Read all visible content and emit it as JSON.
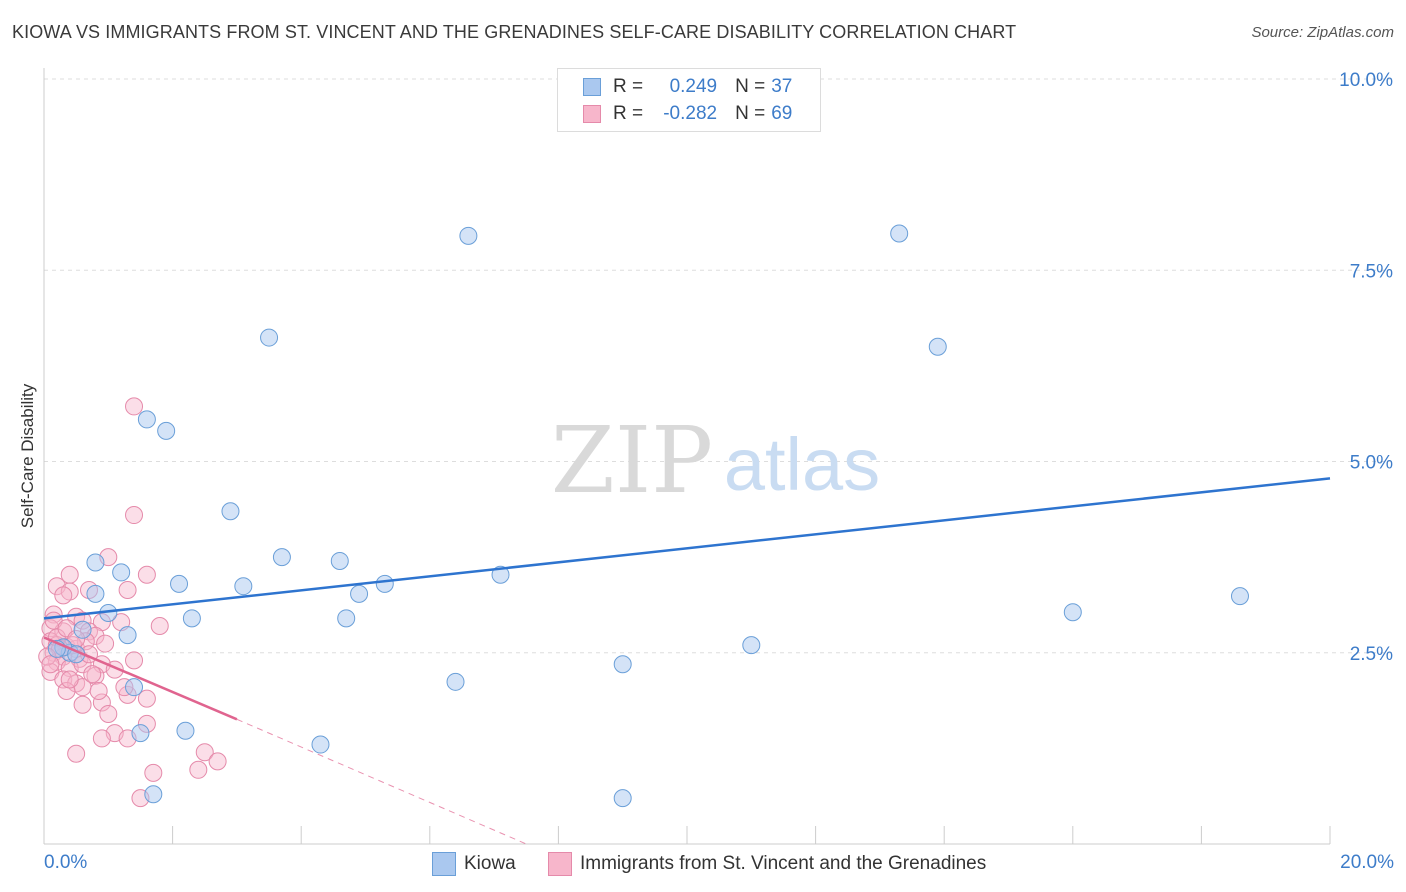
{
  "title": "KIOWA VS IMMIGRANTS FROM ST. VINCENT AND THE GRENADINES SELF-CARE DISABILITY CORRELATION CHART",
  "source": "Source: ZipAtlas.com",
  "watermark": {
    "zip": "ZIP",
    "atlas": "atlas"
  },
  "stats": {
    "kiowa": {
      "r_label": "R =",
      "r_value": "0.249",
      "n_label": "N =",
      "n_value": "37"
    },
    "svg": {
      "r_label": "R =",
      "r_value": "-0.282",
      "n_label": "N =",
      "n_value": "69"
    }
  },
  "colors": {
    "kiowa_fill": "#aac8ef",
    "kiowa_stroke": "#6a9fd8",
    "kiowa_line": "#2e74cf",
    "svg_fill": "#f7b6cb",
    "svg_stroke": "#e58aaa",
    "svg_line": "#e0648f",
    "axis_text": "#3d7cc9",
    "grid": "#dddddd"
  },
  "chart_data": {
    "type": "scatter",
    "title": "KIOWA VS IMMIGRANTS FROM ST. VINCENT AND THE GRENADINES SELF-CARE DISABILITY CORRELATION CHART",
    "xlabel": "",
    "ylabel": "Self-Care Disability",
    "xlim": [
      0,
      20
    ],
    "ylim": [
      0,
      10
    ],
    "x_tick_labels": [
      "0.0%",
      "20.0%"
    ],
    "y_ticks": [
      2.5,
      5.0,
      7.5,
      10.0
    ],
    "y_tick_labels": [
      "2.5%",
      "5.0%",
      "7.5%",
      "10.0%"
    ],
    "grid": true,
    "legend_position": "bottom-center",
    "series": [
      {
        "name": "Kiowa",
        "points": [
          [
            6.6,
            7.95
          ],
          [
            13.3,
            7.98
          ],
          [
            3.5,
            6.62
          ],
          [
            13.9,
            6.5
          ],
          [
            1.6,
            5.55
          ],
          [
            1.9,
            5.4
          ],
          [
            2.9,
            4.35
          ],
          [
            1.2,
            3.55
          ],
          [
            0.8,
            3.68
          ],
          [
            3.7,
            3.75
          ],
          [
            4.6,
            3.7
          ],
          [
            7.1,
            3.52
          ],
          [
            2.1,
            3.4
          ],
          [
            3.1,
            3.37
          ],
          [
            5.3,
            3.4
          ],
          [
            4.9,
            3.27
          ],
          [
            0.8,
            3.27
          ],
          [
            1.0,
            3.02
          ],
          [
            2.3,
            2.95
          ],
          [
            4.7,
            2.95
          ],
          [
            16.0,
            3.03
          ],
          [
            18.6,
            3.24
          ],
          [
            1.3,
            2.73
          ],
          [
            0.6,
            2.8
          ],
          [
            11.0,
            2.6
          ],
          [
            0.4,
            2.5
          ],
          [
            0.3,
            2.57
          ],
          [
            9.0,
            2.35
          ],
          [
            6.4,
            2.12
          ],
          [
            1.4,
            2.05
          ],
          [
            1.5,
            1.45
          ],
          [
            2.2,
            1.48
          ],
          [
            4.3,
            1.3
          ],
          [
            1.7,
            0.65
          ],
          [
            9.0,
            0.6
          ],
          [
            0.2,
            2.55
          ],
          [
            0.5,
            2.48
          ]
        ],
        "trend": {
          "x": [
            0,
            20
          ],
          "y": [
            2.95,
            4.78
          ]
        }
      },
      {
        "name": "Immigrants from St. Vincent and the Grenadines",
        "points": [
          [
            1.4,
            5.72
          ],
          [
            1.4,
            4.3
          ],
          [
            1.0,
            3.75
          ],
          [
            0.4,
            3.52
          ],
          [
            1.6,
            3.52
          ],
          [
            0.2,
            3.37
          ],
          [
            0.4,
            3.3
          ],
          [
            0.7,
            3.32
          ],
          [
            1.3,
            3.32
          ],
          [
            0.3,
            3.25
          ],
          [
            0.5,
            2.97
          ],
          [
            0.15,
            3.0
          ],
          [
            0.6,
            2.92
          ],
          [
            0.9,
            2.9
          ],
          [
            1.2,
            2.9
          ],
          [
            1.8,
            2.85
          ],
          [
            0.1,
            2.82
          ],
          [
            0.3,
            2.78
          ],
          [
            0.7,
            2.78
          ],
          [
            0.8,
            2.72
          ],
          [
            0.1,
            2.65
          ],
          [
            0.2,
            2.6
          ],
          [
            0.35,
            2.58
          ],
          [
            0.5,
            2.55
          ],
          [
            0.65,
            2.65
          ],
          [
            0.15,
            2.5
          ],
          [
            0.3,
            2.45
          ],
          [
            0.55,
            2.42
          ],
          [
            0.2,
            2.38
          ],
          [
            1.4,
            2.4
          ],
          [
            0.9,
            2.35
          ],
          [
            0.4,
            2.3
          ],
          [
            0.1,
            2.25
          ],
          [
            0.8,
            2.2
          ],
          [
            1.1,
            2.28
          ],
          [
            0.3,
            2.15
          ],
          [
            0.5,
            2.1
          ],
          [
            0.6,
            2.05
          ],
          [
            0.35,
            2.0
          ],
          [
            1.3,
            1.95
          ],
          [
            0.9,
            1.85
          ],
          [
            1.6,
            1.9
          ],
          [
            1.0,
            1.7
          ],
          [
            0.6,
            1.82
          ],
          [
            1.6,
            1.57
          ],
          [
            1.1,
            1.45
          ],
          [
            0.9,
            1.38
          ],
          [
            1.3,
            1.38
          ],
          [
            2.5,
            1.2
          ],
          [
            0.5,
            1.18
          ],
          [
            2.7,
            1.08
          ],
          [
            1.7,
            0.93
          ],
          [
            2.4,
            0.97
          ],
          [
            1.5,
            0.6
          ],
          [
            0.2,
            2.7
          ],
          [
            0.45,
            2.6
          ],
          [
            0.25,
            2.55
          ],
          [
            0.05,
            2.45
          ],
          [
            0.6,
            2.35
          ],
          [
            0.75,
            2.22
          ],
          [
            0.15,
            2.92
          ],
          [
            0.95,
            2.62
          ],
          [
            1.25,
            2.05
          ],
          [
            0.35,
            2.82
          ],
          [
            0.5,
            2.68
          ],
          [
            0.7,
            2.48
          ],
          [
            0.1,
            2.35
          ],
          [
            0.4,
            2.15
          ],
          [
            0.85,
            2.0
          ]
        ],
        "trend": {
          "x": [
            0,
            3.0
          ],
          "y": [
            2.7,
            1.63
          ]
        },
        "trend_dashed": {
          "x": [
            3.0,
            7.5
          ],
          "y": [
            1.63,
            0.0
          ]
        }
      }
    ]
  },
  "legend": {
    "kiowa": "Kiowa",
    "svg": "Immigrants from St. Vincent and the Grenadines"
  }
}
